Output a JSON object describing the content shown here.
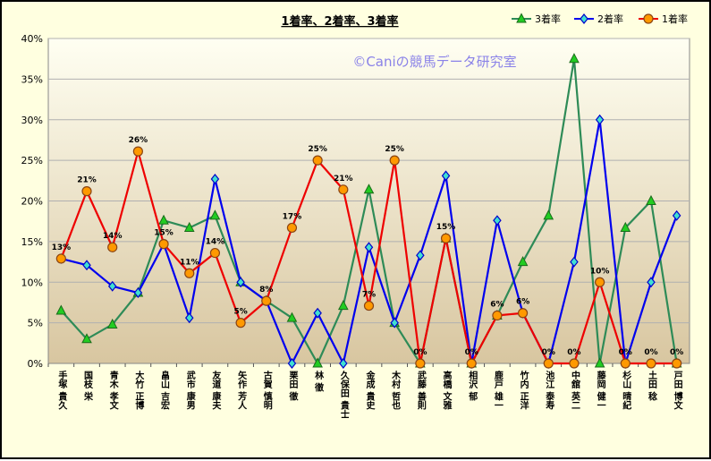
{
  "chart_data": {
    "type": "line",
    "title": "1着率、2着率、3着率",
    "watermark": "©Caniの競馬データ研究室",
    "ylim": [
      0,
      40
    ],
    "yticks": [
      "0%",
      "5%",
      "10%",
      "15%",
      "20%",
      "25%",
      "30%",
      "35%",
      "40%"
    ],
    "grid": "horizontal",
    "legend_position": "top-right",
    "categories": [
      "手塚 貴久",
      "国枝 栄",
      "青木 孝文",
      "大竹 正博",
      "畠山 吉宏",
      "武市 康男",
      "友道 康夫",
      "矢作 芳人",
      "古賀 慎明",
      "栗田 徹",
      "林 徹",
      "久保田 貴士",
      "金成 貴史",
      "木村 哲也",
      "武藤 善則",
      "高橋 文雅",
      "相沢 郁",
      "鹿戸 雄一",
      "竹内 正洋",
      "池江 泰寿",
      "中舘 英二",
      "藤岡 健一",
      "杉山 晴紀",
      "土田 稔",
      "戸田 博文"
    ],
    "series": [
      {
        "name": "3着率",
        "color": "#2e8b57",
        "marker": "triangle",
        "marker_fill": "#22cc22",
        "values": [
          6.5,
          3,
          4.8,
          8.7,
          17.6,
          16.7,
          18.2,
          10,
          7.7,
          5.6,
          0,
          7.1,
          21.4,
          5,
          0,
          15.4,
          0,
          5.9,
          12.5,
          18.2,
          37.5,
          0,
          16.7,
          20,
          0
        ]
      },
      {
        "name": "2着率",
        "color": "#0000ee",
        "marker": "diamond",
        "marker_fill": "#40e0d0",
        "values": [
          12.9,
          12.1,
          9.5,
          8.7,
          14.7,
          5.6,
          22.7,
          10,
          7.7,
          0,
          6.2,
          0,
          14.3,
          5,
          13.3,
          23.1,
          0,
          17.6,
          6.2,
          0,
          12.5,
          30,
          0,
          10,
          18.2
        ]
      },
      {
        "name": "1着率",
        "color": "#ee0000",
        "marker": "circle",
        "marker_fill": "#ff9900",
        "values": [
          12.9,
          21.2,
          14.3,
          26.1,
          14.7,
          11.1,
          13.6,
          5,
          7.7,
          16.7,
          25,
          21.4,
          7.1,
          25,
          0,
          15.4,
          0,
          5.9,
          6.2,
          0,
          0,
          10,
          0,
          0,
          0
        ],
        "labels": [
          "13%",
          "21%",
          "14%",
          "26%",
          "15%",
          "11%",
          "14%",
          "5%",
          "8%",
          "17%",
          "25%",
          "21%",
          "7%",
          "25%",
          "0%",
          "15%",
          "0%",
          "6%",
          "6%",
          "0%",
          "0%",
          "10%",
          "0%",
          "0%",
          "0%"
        ]
      }
    ]
  }
}
